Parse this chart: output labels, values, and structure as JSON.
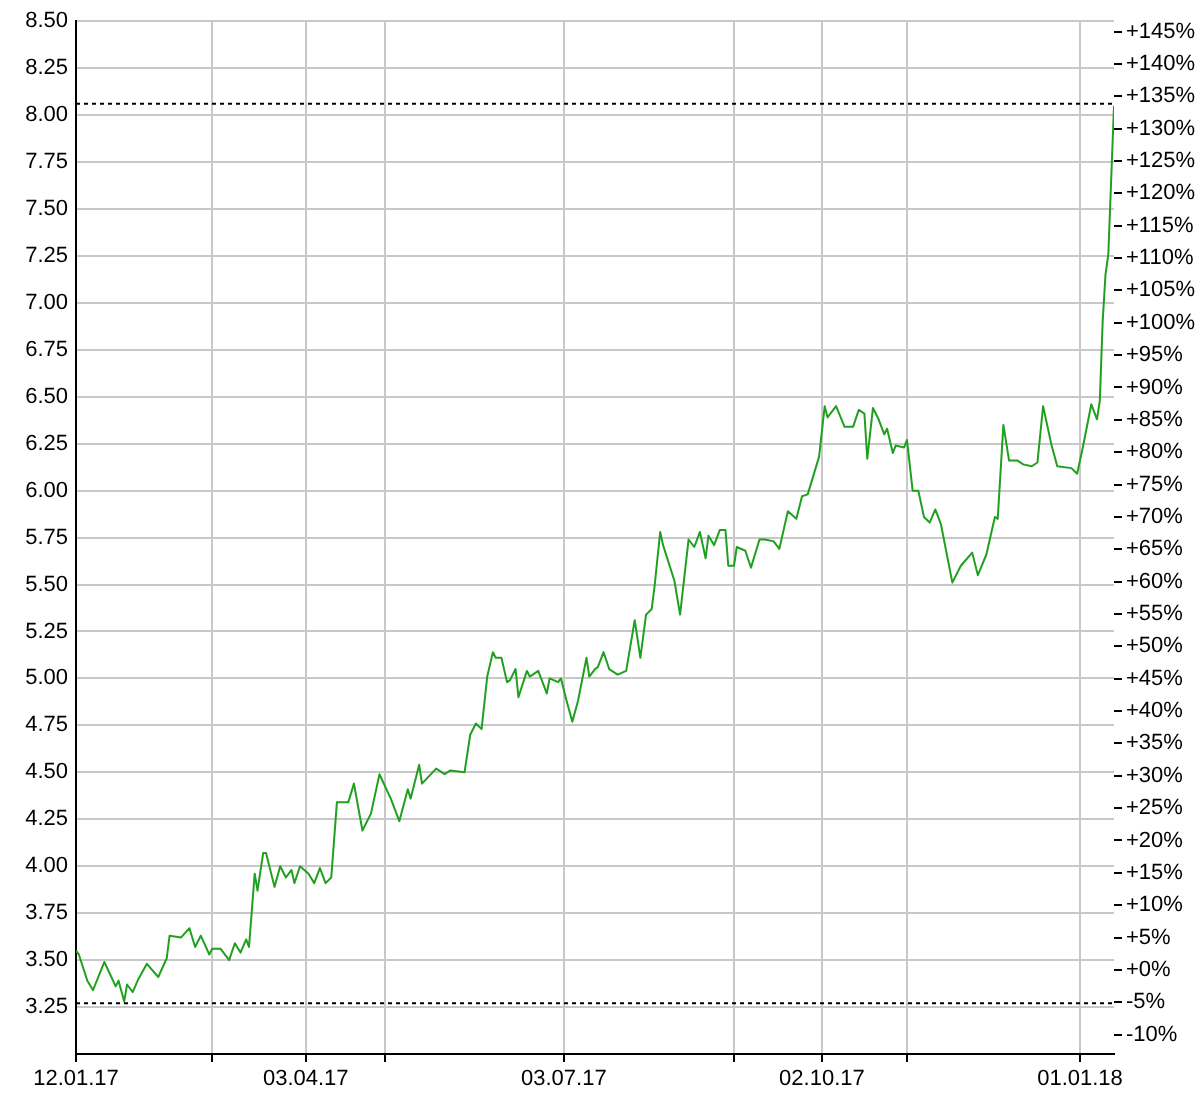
{
  "chart_data": {
    "type": "line",
    "x": [
      "2017-01-12",
      "2017-01-13",
      "2017-01-16",
      "2017-01-18",
      "2017-01-22",
      "2017-01-26",
      "2017-01-27",
      "2017-01-29",
      "2017-01-30",
      "2017-02-01",
      "2017-02-03",
      "2017-02-06",
      "2017-02-10",
      "2017-02-13",
      "2017-02-14",
      "2017-02-18",
      "2017-02-21",
      "2017-02-23",
      "2017-02-25",
      "2017-02-28",
      "2017-03-01",
      "2017-03-04",
      "2017-03-07",
      "2017-03-09",
      "2017-03-11",
      "2017-03-13",
      "2017-03-14",
      "2017-03-16",
      "2017-03-17",
      "2017-03-19",
      "2017-03-20",
      "2017-03-23",
      "2017-03-25",
      "2017-03-27",
      "2017-03-29",
      "2017-03-30",
      "2017-04-01",
      "2017-04-04",
      "2017-04-06",
      "2017-04-08",
      "2017-04-10",
      "2017-04-12",
      "2017-04-14",
      "2017-04-18",
      "2017-04-20",
      "2017-04-23",
      "2017-04-26",
      "2017-04-29",
      "2017-05-03",
      "2017-05-06",
      "2017-05-09",
      "2017-05-10",
      "2017-05-13",
      "2017-05-14",
      "2017-05-19",
      "2017-05-22",
      "2017-05-24",
      "2017-05-29",
      "2017-05-31",
      "2017-06-02",
      "2017-06-04",
      "2017-06-06",
      "2017-06-08",
      "2017-06-09",
      "2017-06-11",
      "2017-06-13",
      "2017-06-14",
      "2017-06-16",
      "2017-06-17",
      "2017-06-20",
      "2017-06-21",
      "2017-06-24",
      "2017-06-27",
      "2017-06-28",
      "2017-07-01",
      "2017-07-02",
      "2017-07-04",
      "2017-07-06",
      "2017-07-08",
      "2017-07-11",
      "2017-07-12",
      "2017-07-14",
      "2017-07-15",
      "2017-07-17",
      "2017-07-19",
      "2017-07-22",
      "2017-07-25",
      "2017-07-28",
      "2017-07-30",
      "2017-08-01",
      "2017-08-03",
      "2017-08-04",
      "2017-08-06",
      "2017-08-07",
      "2017-08-11",
      "2017-08-13",
      "2017-08-16",
      "2017-08-18",
      "2017-08-20",
      "2017-08-22",
      "2017-08-23",
      "2017-08-25",
      "2017-08-27",
      "2017-08-29",
      "2017-08-30",
      "2017-09-01",
      "2017-09-02",
      "2017-09-05",
      "2017-09-07",
      "2017-09-10",
      "2017-09-12",
      "2017-09-15",
      "2017-09-17",
      "2017-09-20",
      "2017-09-23",
      "2017-09-25",
      "2017-09-27",
      "2017-10-01",
      "2017-10-03",
      "2017-10-04",
      "2017-10-07",
      "2017-10-10",
      "2017-10-13",
      "2017-10-15",
      "2017-10-17",
      "2017-10-18",
      "2017-10-20",
      "2017-10-22",
      "2017-10-24",
      "2017-10-25",
      "2017-10-27",
      "2017-10-28",
      "2017-10-31",
      "2017-11-01",
      "2017-11-03",
      "2017-11-05",
      "2017-11-07",
      "2017-11-09",
      "2017-11-11",
      "2017-11-13",
      "2017-11-17",
      "2017-11-20",
      "2017-11-24",
      "2017-11-26",
      "2017-11-29",
      "2017-12-02",
      "2017-12-03",
      "2017-12-05",
      "2017-12-07",
      "2017-12-10",
      "2017-12-12",
      "2017-12-15",
      "2017-12-17",
      "2017-12-19",
      "2017-12-22",
      "2017-12-24",
      "2017-12-29",
      "2017-12-31",
      "2018-01-02",
      "2018-01-05",
      "2018-01-07",
      "2018-01-08",
      "2018-01-09",
      "2018-01-10",
      "2018-01-11",
      "2018-01-13"
    ],
    "values": [
      3.55,
      3.53,
      3.39,
      3.34,
      3.49,
      3.36,
      3.39,
      3.28,
      3.37,
      3.33,
      3.4,
      3.48,
      3.41,
      3.51,
      3.63,
      3.62,
      3.67,
      3.57,
      3.63,
      3.53,
      3.56,
      3.56,
      3.5,
      3.59,
      3.54,
      3.61,
      3.57,
      3.96,
      3.87,
      4.07,
      4.07,
      3.89,
      4.0,
      3.94,
      3.98,
      3.91,
      4.0,
      3.96,
      3.91,
      3.99,
      3.91,
      3.94,
      4.34,
      4.34,
      4.44,
      4.19,
      4.28,
      4.49,
      4.36,
      4.24,
      4.41,
      4.36,
      4.54,
      4.44,
      4.52,
      4.49,
      4.51,
      4.5,
      4.7,
      4.76,
      4.73,
      5.01,
      5.14,
      5.11,
      5.11,
      4.98,
      4.99,
      5.05,
      4.9,
      5.04,
      5.01,
      5.04,
      4.92,
      5.0,
      4.98,
      5.0,
      4.88,
      4.77,
      4.88,
      5.11,
      5.01,
      5.05,
      5.06,
      5.14,
      5.05,
      5.02,
      5.04,
      5.31,
      5.11,
      5.34,
      5.37,
      5.49,
      5.78,
      5.71,
      5.52,
      5.34,
      5.74,
      5.7,
      5.78,
      5.64,
      5.76,
      5.71,
      5.79,
      5.79,
      5.6,
      5.6,
      5.7,
      5.68,
      5.59,
      5.74,
      5.74,
      5.73,
      5.69,
      5.89,
      5.85,
      5.97,
      5.98,
      6.18,
      6.45,
      6.39,
      6.45,
      6.34,
      6.34,
      6.43,
      6.41,
      6.17,
      6.44,
      6.38,
      6.3,
      6.33,
      6.2,
      6.24,
      6.23,
      6.27,
      6.0,
      6.0,
      5.86,
      5.83,
      5.9,
      5.82,
      5.51,
      5.6,
      5.67,
      5.55,
      5.66,
      5.86,
      5.85,
      6.35,
      6.16,
      6.16,
      6.14,
      6.13,
      6.15,
      6.45,
      6.24,
      6.13,
      6.12,
      6.09,
      6.23,
      6.46,
      6.38,
      6.48,
      6.9,
      7.15,
      7.26,
      8.05
    ],
    "color": "#1fa01f",
    "xlim": [
      "2017-01-12",
      "2018-01-13"
    ],
    "xticks": [
      {
        "value": "2017-01-12",
        "label": "12.01.17"
      },
      {
        "value": "2017-03-01",
        "label": null
      },
      {
        "value": "2017-04-03",
        "label": "03.04.17"
      },
      {
        "value": "2017-05-01",
        "label": null
      },
      {
        "value": "2017-07-03",
        "label": "03.07.17"
      },
      {
        "value": "2017-09-01",
        "label": null
      },
      {
        "value": "2017-10-02",
        "label": "02.10.17"
      },
      {
        "value": "2017-11-01",
        "label": null
      },
      {
        "value": "2018-01-01",
        "label": "01.01.18"
      }
    ],
    "ylim": [
      3,
      8.5
    ],
    "yticks": [
      3.25,
      {
        "value": 3.5,
        "label": "3.50"
      },
      3.75,
      {
        "value": 4,
        "label": "4.00"
      },
      4.25,
      {
        "value": 4.5,
        "label": "4.50"
      },
      4.75,
      {
        "value": 5,
        "label": "5.00"
      },
      5.25,
      {
        "value": 5.5,
        "label": "5.50"
      },
      5.75,
      {
        "value": 6,
        "label": "6.00"
      },
      6.25,
      {
        "value": 6.5,
        "label": "6.50"
      },
      6.75,
      {
        "value": 7,
        "label": "7.00"
      },
      7.25,
      {
        "value": 7.5,
        "label": "7.50"
      },
      7.75,
      {
        "value": 8,
        "label": "8.00"
      },
      8.25,
      {
        "value": 8.5,
        "label": "8.50"
      }
    ],
    "y2lim": [
      -13,
      146.6
    ],
    "y2ticks": [
      {
        "value": -10,
        "label": "-10%"
      },
      {
        "value": -5,
        "label": "-5%"
      },
      {
        "value": 0,
        "label": "+0%"
      },
      {
        "value": 5,
        "label": "+5%"
      },
      {
        "value": 10,
        "label": "+10%"
      },
      {
        "value": 15,
        "label": "+15%"
      },
      {
        "value": 20,
        "label": "+20%"
      },
      {
        "value": 25,
        "label": "+25%"
      },
      {
        "value": 30,
        "label": "+30%"
      },
      {
        "value": 35,
        "label": "+35%"
      },
      {
        "value": 40,
        "label": "+40%"
      },
      {
        "value": 45,
        "label": "+45%"
      },
      {
        "value": 50,
        "label": "+50%"
      },
      {
        "value": 55,
        "label": "+55%"
      },
      {
        "value": 60,
        "label": "+60%"
      },
      {
        "value": 65,
        "label": "+65%"
      },
      {
        "value": 70,
        "label": "+70%"
      },
      {
        "value": 75,
        "label": "+75%"
      },
      {
        "value": 80,
        "label": "+80%"
      },
      {
        "value": 85,
        "label": "+85%"
      },
      {
        "value": 90,
        "label": "+90%"
      },
      {
        "value": 95,
        "label": "+95%"
      },
      {
        "value": 100,
        "label": "+100%"
      },
      {
        "value": 105,
        "label": "+105%"
      },
      {
        "value": 110,
        "label": "+110%"
      },
      {
        "value": 115,
        "label": "+115%"
      },
      {
        "value": 120,
        "label": "+120%"
      },
      {
        "value": 125,
        "label": "+125%"
      },
      {
        "value": 130,
        "label": "+130%"
      },
      {
        "value": 135,
        "label": "+135%"
      },
      {
        "value": 140,
        "label": "+140%"
      },
      {
        "value": 145,
        "label": "+145%"
      }
    ],
    "ref_lines": [
      {
        "axis": "y",
        "value": 8.06,
        "color": "#000000",
        "line_style": "dotted"
      },
      {
        "axis": "y",
        "value": 3.27,
        "color": "#000000",
        "line_style": "dotted"
      }
    ],
    "grid": true,
    "marker": "none",
    "line_style": "solid",
    "legend": false
  }
}
